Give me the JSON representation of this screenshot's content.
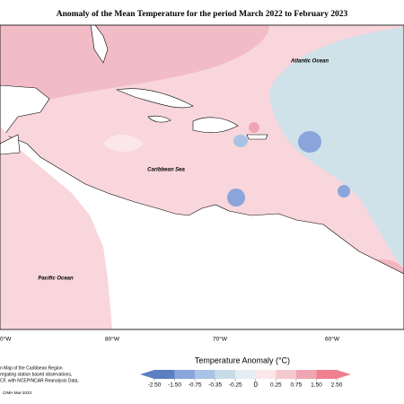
{
  "title": "Anomaly of the Mean Temperature for the period March 2022 to February 2023",
  "map_labels": [
    "Atlantic Ocean",
    "Caribbean Sea",
    "Pacific Ocean"
  ],
  "longitude_labels": [
    "0°W",
    "80°W",
    "70°W",
    "60°W"
  ],
  "footnote": [
    "n Map of the Caribbean Region",
    "regating station based observations,",
    "CF, with NCEP/NCAR Reanalysis Data.",
    "CIMH Mar-2023"
  ],
  "legend": {
    "title": "Temperature Anomaly (°C)",
    "ticks": [
      {
        "value": -2.5,
        "label": "-2.50"
      },
      {
        "value": -1.5,
        "label": "-1.50"
      },
      -0.75,
      -0.35,
      -0.25,
      0,
      0.25,
      0.75,
      {
        "value": 1.5,
        "label": "1.50"
      },
      {
        "value": 2.5,
        "label": "2.50"
      }
    ],
    "colors": [
      "#5b7fc0",
      "#8aa5dc",
      "#a9c3e6",
      "#c8dce8",
      "#e3edf2",
      "#fbe6e9",
      "#f5c9d0",
      "#f0a6b2",
      "#ef8090"
    ]
  }
}
